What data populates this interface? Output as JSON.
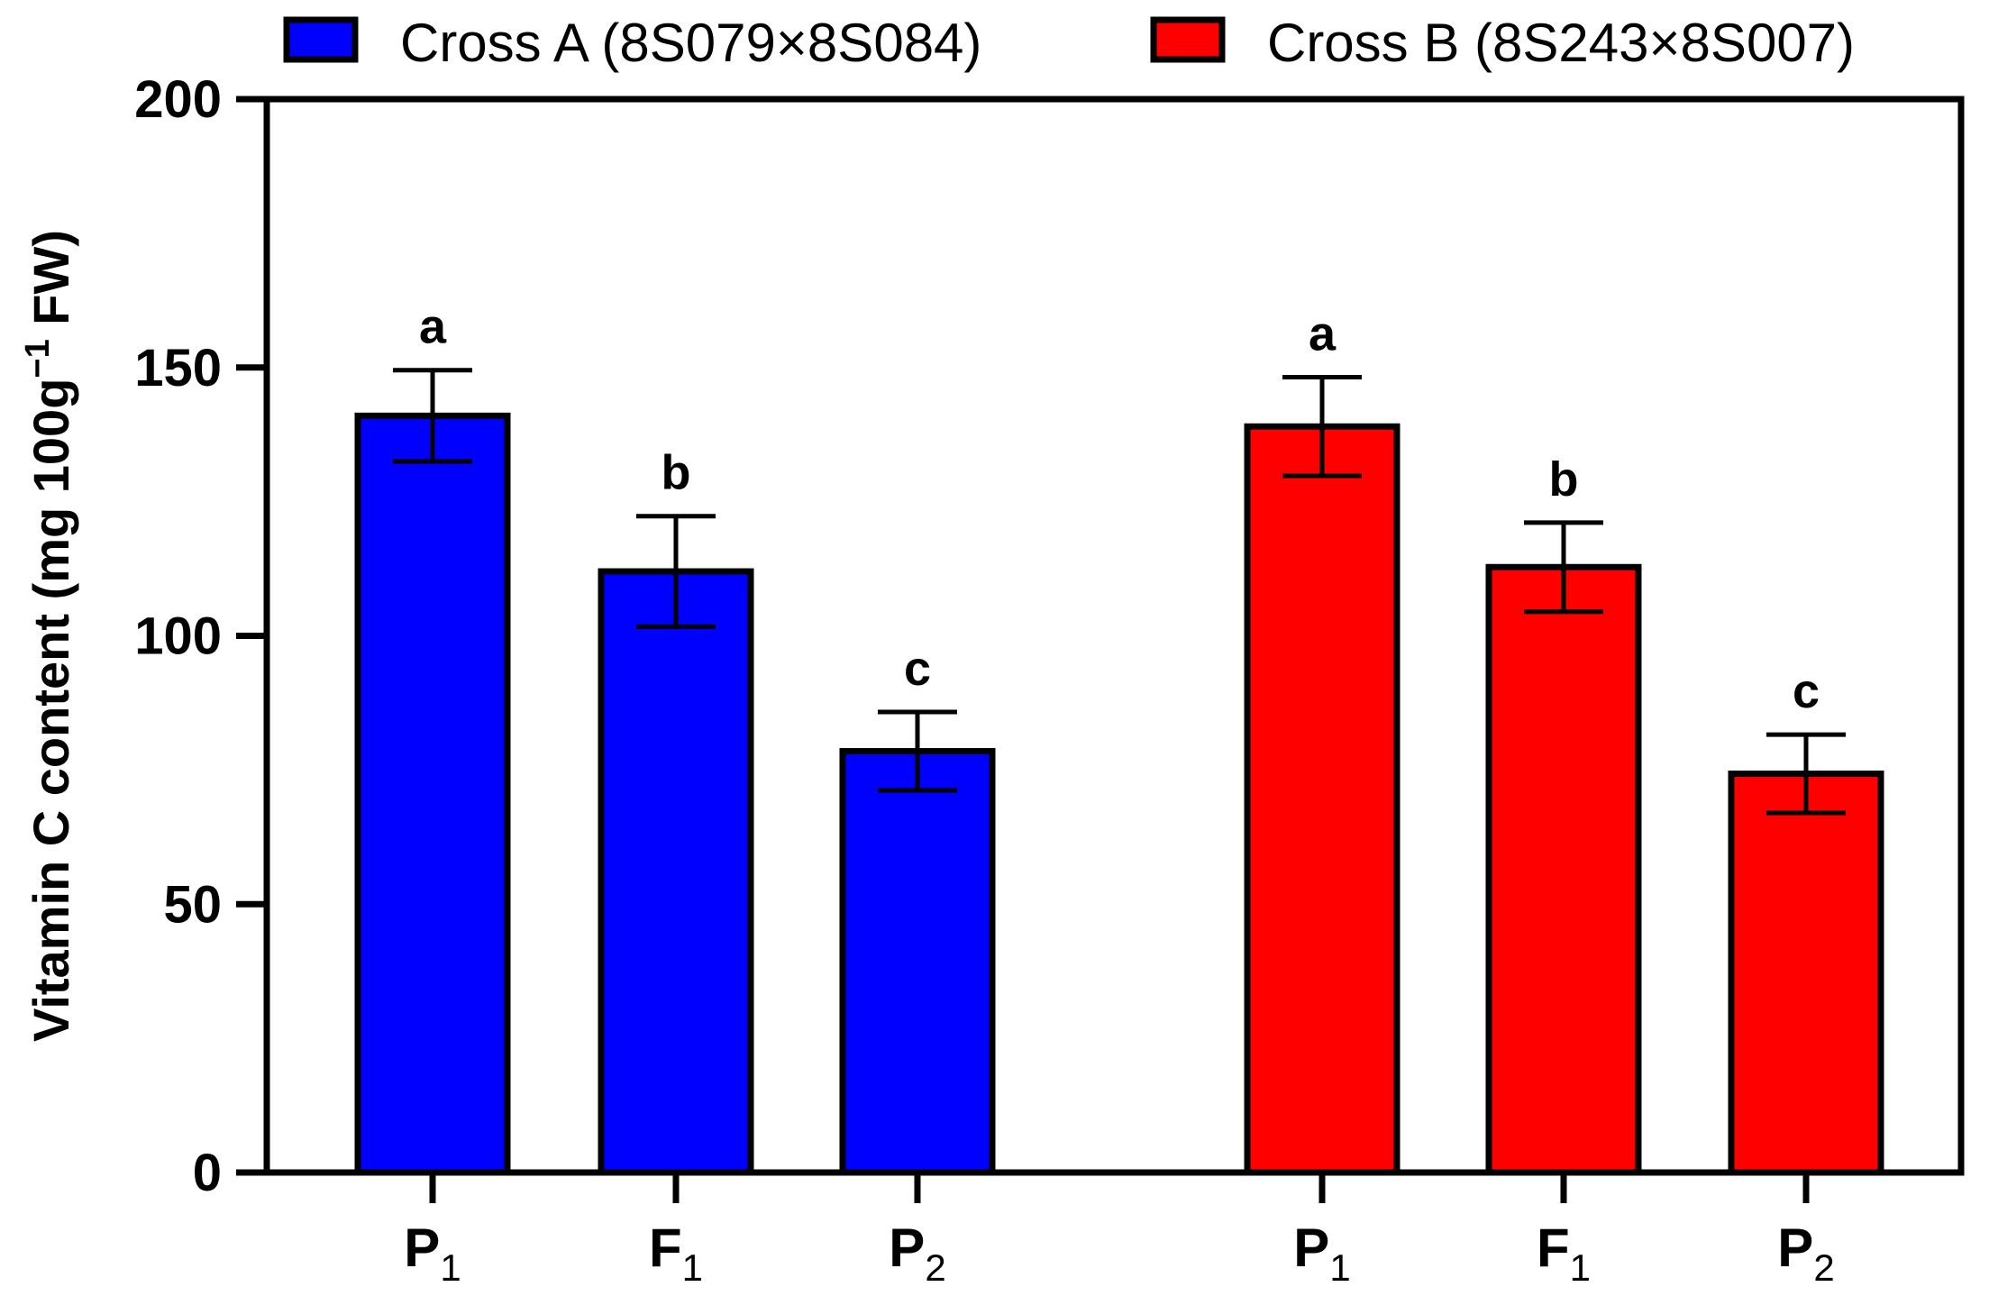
{
  "chart_data": {
    "type": "bar",
    "ylabel": "Vitamin C content (mg 100g",
    "ylabel_sup": "−1",
    "ylabel_end": " FW)",
    "ylim": [
      0,
      200
    ],
    "yticks": [
      0,
      50,
      100,
      150,
      200
    ],
    "grid": false,
    "legend_position": "top",
    "series": [
      {
        "name": "Cross A (8S079×8S084)",
        "color": "#0000ff",
        "categories": [
          {
            "base": "P",
            "sub": "1"
          },
          {
            "base": "F",
            "sub": "1"
          },
          {
            "base": "P",
            "sub": "2"
          }
        ],
        "values": [
          141,
          112,
          78.5
        ],
        "errors": [
          8.5,
          10.3,
          7.3
        ],
        "letters": [
          "a",
          "b",
          "c"
        ]
      },
      {
        "name": "Cross B (8S243×8S007)",
        "color": "#ff0000",
        "categories": [
          {
            "base": "P",
            "sub": "1"
          },
          {
            "base": "F",
            "sub": "1"
          },
          {
            "base": "P",
            "sub": "2"
          }
        ],
        "values": [
          139,
          112.8,
          74.3
        ],
        "errors": [
          9.2,
          8.3,
          7.3
        ],
        "letters": [
          "a",
          "b",
          "c"
        ]
      }
    ]
  }
}
